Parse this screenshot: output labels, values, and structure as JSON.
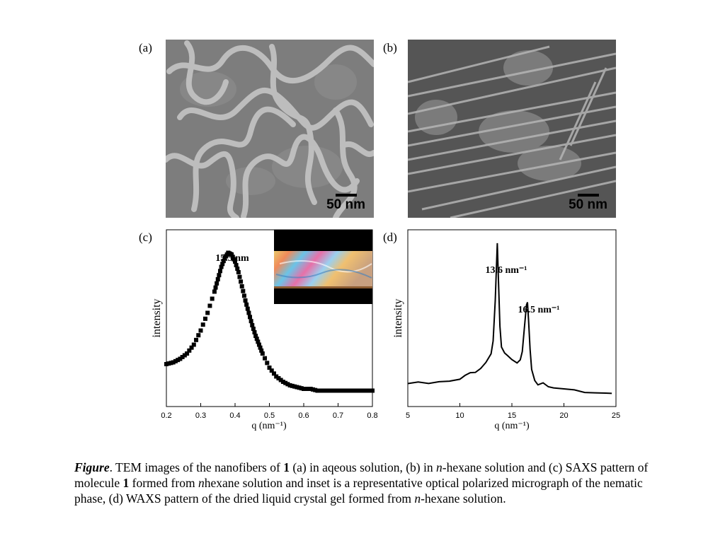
{
  "panels": {
    "a": {
      "label": "(a)",
      "scale_label": "50 nm"
    },
    "b": {
      "label": "(b)",
      "scale_label": "50 nm"
    },
    "c": {
      "label": "(c)"
    },
    "d": {
      "label": "(d)"
    }
  },
  "chart_data": [
    {
      "type": "scatter",
      "panel": "(c)",
      "xlabel": "q (nm⁻¹)",
      "ylabel": "intensity",
      "xlim": [
        0.2,
        0.8
      ],
      "xticks": [
        "0.2",
        "0.3",
        "0.4",
        "0.5",
        "0.6",
        "0.7",
        "0.8"
      ],
      "ylim": [
        0,
        1
      ],
      "yticks_shown": false,
      "annotation": "15.5 nm",
      "inset": "optical polarized micrograph",
      "series": [
        {
          "x": [
            0.2,
            0.22,
            0.24,
            0.26,
            0.28,
            0.3,
            0.32,
            0.34,
            0.35,
            0.36,
            0.37,
            0.38,
            0.39,
            0.4,
            0.41,
            0.42,
            0.43,
            0.44,
            0.45,
            0.46,
            0.47,
            0.48,
            0.5,
            0.52,
            0.54,
            0.56,
            0.58,
            0.6,
            0.62,
            0.64,
            0.66,
            0.68,
            0.7,
            0.72,
            0.74,
            0.76,
            0.78,
            0.8
          ],
          "y": [
            0.24,
            0.25,
            0.27,
            0.3,
            0.35,
            0.43,
            0.53,
            0.65,
            0.72,
            0.79,
            0.84,
            0.87,
            0.86,
            0.82,
            0.76,
            0.68,
            0.6,
            0.53,
            0.46,
            0.4,
            0.35,
            0.3,
            0.22,
            0.17,
            0.14,
            0.12,
            0.11,
            0.1,
            0.1,
            0.09,
            0.09,
            0.09,
            0.09,
            0.09,
            0.09,
            0.09,
            0.09,
            0.09
          ]
        }
      ]
    },
    {
      "type": "line",
      "panel": "(d)",
      "xlabel": "q (nm⁻¹)",
      "ylabel": "intensity",
      "xlim": [
        5,
        25
      ],
      "xticks": [
        "5",
        "10",
        "15",
        "20",
        "25"
      ],
      "ylim": [
        0,
        1
      ],
      "yticks_shown": false,
      "annotations": [
        "13.6 nm⁻¹",
        "16.5 nm⁻¹"
      ],
      "series": [
        {
          "x": [
            5,
            6,
            7,
            8,
            9,
            10,
            10.5,
            11,
            11.5,
            12,
            12.5,
            13,
            13.2,
            13.4,
            13.55,
            13.6,
            13.7,
            13.85,
            14,
            14.3,
            14.6,
            15,
            15.5,
            15.8,
            16,
            16.2,
            16.4,
            16.5,
            16.6,
            16.75,
            16.9,
            17.2,
            17.5,
            18,
            18.5,
            19,
            20,
            21,
            22,
            23,
            24,
            24.6
          ],
          "y": [
            0.13,
            0.13,
            0.13,
            0.135,
            0.14,
            0.15,
            0.17,
            0.19,
            0.2,
            0.22,
            0.25,
            0.3,
            0.38,
            0.6,
            0.85,
            0.92,
            0.72,
            0.45,
            0.33,
            0.3,
            0.28,
            0.26,
            0.24,
            0.27,
            0.32,
            0.45,
            0.58,
            0.6,
            0.5,
            0.33,
            0.2,
            0.14,
            0.12,
            0.13,
            0.11,
            0.1,
            0.09,
            0.085,
            0.085,
            0.08,
            0.08,
            0.075
          ]
        }
      ]
    }
  ],
  "caption": {
    "label": "Figure",
    "part1": ". TEM images of the nanofibers of ",
    "bold1": "1",
    "part2": " (a) in aqeous solution, (b) in ",
    "ital1": "n",
    "part3": "-hexane solution and (c) SAXS pattern of molecule ",
    "bold2": "1",
    "part4": " formed from ",
    "ital2": "n",
    "part5": "hexane solution and inset is a representative optical polarized micrograph of the nematic phase, (d) WAXS pattern of the dried liquid crystal gel formed from ",
    "ital3": "n",
    "part6": "-hexane solution."
  }
}
